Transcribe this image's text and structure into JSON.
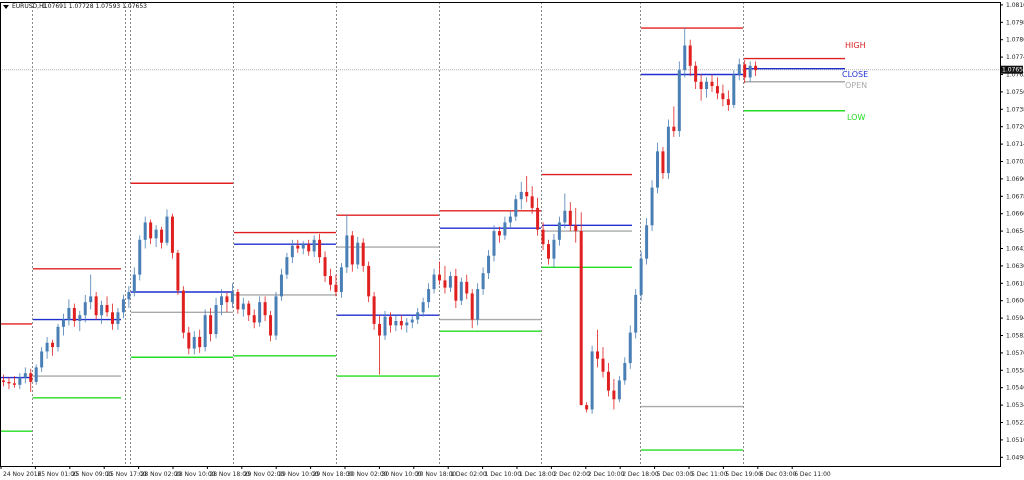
{
  "header": {
    "dropdown_icon": "triangle-down-icon",
    "symbol": "EURUSD,H1",
    "quote": "1.07691 1.07728 1.07593 1.07653"
  },
  "colors": {
    "bull": "#4a7fb5",
    "bear": "#e02020",
    "high": "#e02020",
    "low": "#22dd22",
    "close": "#1f2fd0",
    "open": "#aaaaaa",
    "grid": "#888888",
    "price_tag": "#111111"
  },
  "level_labels": {
    "high": "HIGH",
    "close": "CLOSE",
    "open": "OPEN",
    "low": "LOW"
  },
  "chart_data": {
    "type": "candlestick",
    "title": "EURUSD,H1",
    "ylim": [
      1.0492,
      1.0812
    ],
    "y_ticks": [
      "1.08100",
      "1.07980",
      "1.07860",
      "1.07740",
      "1.07620",
      "1.07500",
      "1.07380",
      "1.07260",
      "1.07140",
      "1.07020",
      "1.06900",
      "1.06780",
      "1.06660",
      "1.06540",
      "1.06420",
      "1.06300",
      "1.06180",
      "1.06060",
      "1.05940",
      "1.05820",
      "1.05700",
      "1.05580",
      "1.05460",
      "1.05340",
      "1.05220",
      "1.05100",
      "1.04980"
    ],
    "current_price": "1.07653",
    "x_ticks": [
      "24 Nov 2016",
      "25 Nov 01:00",
      "25 Nov 09:00",
      "25 Nov 17:00",
      "28 Nov 02:00",
      "28 Nov 10:00",
      "28 Nov 18:00",
      "29 Nov 02:00",
      "29 Nov 10:00",
      "29 Nov 18:00",
      "30 Nov 02:00",
      "30 Nov 10:00",
      "30 Nov 18:00",
      "1 Dec 02:00",
      "1 Dec 10:00",
      "1 Dec 18:00",
      "2 Dec 02:00",
      "2 Dec 10:00",
      "2 Dec 18:00",
      "5 Dec 03:00",
      "5 Dec 11:00",
      "5 Dec 19:00",
      "6 Dec 03:00",
      "6 Dec 11:00"
    ],
    "day_separators": [
      "24 Nov",
      "25 Nov",
      "28 Nov",
      "29 Nov",
      "30 Nov",
      "1 Dec",
      "2 Dec",
      "5 Dec",
      "6 Dec"
    ],
    "daily_levels": [
      {
        "day": "24 Nov",
        "high": 1.059,
        "low": 1.0516,
        "open": null,
        "close": 1.0553
      },
      {
        "day": "25 Nov",
        "high": 1.0628,
        "low": 1.0539,
        "open": 1.0554,
        "close": 1.0593
      },
      {
        "day": "28 Nov",
        "high": 1.0687,
        "low": 1.0567,
        "open": 1.0598,
        "close": 1.0612
      },
      {
        "day": "29 Nov",
        "high": 1.0653,
        "low": 1.0568,
        "open": 1.061,
        "close": 1.0645
      },
      {
        "day": "30 Nov",
        "high": 1.0665,
        "low": 1.0554,
        "open": 1.0643,
        "close": 1.0596
      },
      {
        "day": "1 Dec",
        "high": 1.0668,
        "low": 1.0585,
        "open": 1.0593,
        "close": 1.0656
      },
      {
        "day": "2 Dec",
        "high": 1.0693,
        "low": 1.0629,
        "open": 1.0654,
        "close": 1.0658
      },
      {
        "day": "5 Dec",
        "high": 1.0794,
        "low": 1.0503,
        "open": 1.0533,
        "close": 1.0762
      },
      {
        "day": "6 Dec",
        "high": 1.0773,
        "low": 1.0737,
        "open": 1.0757,
        "close": 1.0766
      }
    ],
    "candles": [
      [
        1.0551,
        1.0555,
        1.0547,
        1.055
      ],
      [
        1.055,
        1.0553,
        1.0545,
        1.0549
      ],
      [
        1.0549,
        1.0554,
        1.0546,
        1.0548
      ],
      [
        1.0548,
        1.0556,
        1.0545,
        1.0553
      ],
      [
        1.0553,
        1.056,
        1.0549,
        1.0556
      ],
      [
        1.0556,
        1.0559,
        1.0543,
        1.055
      ],
      [
        1.055,
        1.0562,
        1.0548,
        1.056
      ],
      [
        1.056,
        1.0574,
        1.0557,
        1.0571
      ],
      [
        1.0571,
        1.0581,
        1.0566,
        1.0577
      ],
      [
        1.0577,
        1.0579,
        1.0568,
        1.0574
      ],
      [
        1.0574,
        1.059,
        1.0571,
        1.0588
      ],
      [
        1.0588,
        1.0597,
        1.0582,
        1.0593
      ],
      [
        1.0593,
        1.0607,
        1.0589,
        1.0601
      ],
      [
        1.0601,
        1.0604,
        1.0588,
        1.0592
      ],
      [
        1.0592,
        1.0599,
        1.0585,
        1.0596
      ],
      [
        1.0596,
        1.061,
        1.0591,
        1.0605
      ],
      [
        1.0605,
        1.0624,
        1.06,
        1.0609
      ],
      [
        1.0609,
        1.0612,
        1.0593,
        1.0596
      ],
      [
        1.0596,
        1.0606,
        1.059,
        1.0603
      ],
      [
        1.0603,
        1.0609,
        1.0595,
        1.0598
      ],
      [
        1.0598,
        1.0604,
        1.0586,
        1.059
      ],
      [
        1.059,
        1.0601,
        1.0586,
        1.0598
      ],
      [
        1.0598,
        1.061,
        1.0594,
        1.0607
      ],
      [
        1.0607,
        1.0616,
        1.0601,
        1.0612
      ],
      [
        1.0612,
        1.0629,
        1.0609,
        1.0624
      ],
      [
        1.0624,
        1.0651,
        1.062,
        1.0648
      ],
      [
        1.0648,
        1.0664,
        1.0642,
        1.066
      ],
      [
        1.066,
        1.0662,
        1.0645,
        1.0649
      ],
      [
        1.0649,
        1.0658,
        1.0643,
        1.0655
      ],
      [
        1.0655,
        1.0657,
        1.0642,
        1.0646
      ],
      [
        1.0646,
        1.0669,
        1.0644,
        1.0664
      ],
      [
        1.0664,
        1.0666,
        1.0635,
        1.0639
      ],
      [
        1.0639,
        1.0641,
        1.061,
        1.0613
      ],
      [
        1.0613,
        1.0616,
        1.058,
        1.0584
      ],
      [
        1.0584,
        1.0588,
        1.0569,
        1.0573
      ],
      [
        1.0573,
        1.0585,
        1.0569,
        1.0581
      ],
      [
        1.0581,
        1.0586,
        1.057,
        1.0574
      ],
      [
        1.0574,
        1.06,
        1.0571,
        1.0596
      ],
      [
        1.0596,
        1.0601,
        1.0578,
        1.0583
      ],
      [
        1.0583,
        1.0608,
        1.058,
        1.0603
      ],
      [
        1.0603,
        1.0614,
        1.0596,
        1.0609
      ],
      [
        1.0609,
        1.0612,
        1.0598,
        1.0605
      ],
      [
        1.0605,
        1.0618,
        1.0601,
        1.0612
      ],
      [
        1.0612,
        1.0614,
        1.0597,
        1.06
      ],
      [
        1.06,
        1.0608,
        1.0595,
        1.0604
      ],
      [
        1.0604,
        1.0606,
        1.0592,
        1.0596
      ],
      [
        1.0596,
        1.06,
        1.0587,
        1.0591
      ],
      [
        1.0591,
        1.0609,
        1.0588,
        1.0605
      ],
      [
        1.0605,
        1.0609,
        1.0592,
        1.0596
      ],
      [
        1.0596,
        1.0599,
        1.0578,
        1.0582
      ],
      [
        1.0582,
        1.0612,
        1.0579,
        1.0609
      ],
      [
        1.0609,
        1.0628,
        1.0606,
        1.0624
      ],
      [
        1.0624,
        1.0639,
        1.0621,
        1.0636
      ],
      [
        1.0636,
        1.0648,
        1.0632,
        1.0644
      ],
      [
        1.0644,
        1.0648,
        1.0639,
        1.0642
      ],
      [
        1.0642,
        1.0647,
        1.0638,
        1.0645
      ],
      [
        1.0645,
        1.0648,
        1.0637,
        1.064
      ],
      [
        1.064,
        1.0651,
        1.0636,
        1.0648
      ],
      [
        1.0648,
        1.0652,
        1.0632,
        1.0636
      ],
      [
        1.0636,
        1.064,
        1.0619,
        1.0623
      ],
      [
        1.0623,
        1.0628,
        1.0613,
        1.0617
      ],
      [
        1.0617,
        1.0624,
        1.0609,
        1.0612
      ],
      [
        1.0612,
        1.0632,
        1.0608,
        1.0629
      ],
      [
        1.0629,
        1.0665,
        1.0625,
        1.0651
      ],
      [
        1.0651,
        1.0654,
        1.0626,
        1.0631
      ],
      [
        1.0631,
        1.065,
        1.0628,
        1.0646
      ],
      [
        1.0646,
        1.0649,
        1.0626,
        1.063
      ],
      [
        1.063,
        1.0633,
        1.0605,
        1.0609
      ],
      [
        1.0609,
        1.0612,
        1.0586,
        1.059
      ],
      [
        1.059,
        1.0596,
        1.0555,
        1.0582
      ],
      [
        1.0582,
        1.0599,
        1.0579,
        1.0595
      ],
      [
        1.0595,
        1.0598,
        1.0584,
        1.0589
      ],
      [
        1.0589,
        1.0596,
        1.0585,
        1.0592
      ],
      [
        1.0592,
        1.0596,
        1.0586,
        1.0589
      ],
      [
        1.0589,
        1.0594,
        1.0584,
        1.0591
      ],
      [
        1.0591,
        1.0596,
        1.0587,
        1.0593
      ],
      [
        1.0593,
        1.0601,
        1.059,
        1.0598
      ],
      [
        1.0598,
        1.0608,
        1.0595,
        1.0605
      ],
      [
        1.0605,
        1.0618,
        1.0601,
        1.0614
      ],
      [
        1.0614,
        1.0628,
        1.0611,
        1.0624
      ],
      [
        1.0624,
        1.0633,
        1.0617,
        1.062
      ],
      [
        1.062,
        1.063,
        1.0611,
        1.0615
      ],
      [
        1.0615,
        1.0626,
        1.0612,
        1.0623
      ],
      [
        1.0623,
        1.0628,
        1.0601,
        1.0606
      ],
      [
        1.0606,
        1.0622,
        1.0603,
        1.0619
      ],
      [
        1.0619,
        1.0624,
        1.0607,
        1.0611
      ],
      [
        1.0611,
        1.0614,
        1.0587,
        1.0593
      ],
      [
        1.0593,
        1.0618,
        1.0589,
        1.0614
      ],
      [
        1.0614,
        1.0629,
        1.061,
        1.0625
      ],
      [
        1.0625,
        1.0641,
        1.0621,
        1.0637
      ],
      [
        1.0637,
        1.0658,
        1.0633,
        1.0654
      ],
      [
        1.0654,
        1.0657,
        1.0646,
        1.0651
      ],
      [
        1.0651,
        1.0664,
        1.0648,
        1.066
      ],
      [
        1.066,
        1.0668,
        1.0656,
        1.0664
      ],
      [
        1.0664,
        1.0679,
        1.0661,
        1.0676
      ],
      [
        1.0676,
        1.0688,
        1.0669,
        1.0681
      ],
      [
        1.0681,
        1.0692,
        1.0674,
        1.0678
      ],
      [
        1.0678,
        1.0685,
        1.0666,
        1.067
      ],
      [
        1.067,
        1.0677,
        1.0651,
        1.0655
      ],
      [
        1.0655,
        1.066,
        1.0641,
        1.0645
      ],
      [
        1.0645,
        1.0648,
        1.0631,
        1.0635
      ],
      [
        1.0635,
        1.0652,
        1.0629,
        1.0648
      ],
      [
        1.0648,
        1.0664,
        1.0644,
        1.066
      ],
      [
        1.066,
        1.068,
        1.0656,
        1.0668
      ],
      [
        1.0668,
        1.0674,
        1.0654,
        1.0658
      ],
      [
        1.0658,
        1.067,
        1.0646,
        1.0654
      ],
      [
        1.0654,
        1.0667,
        1.0534,
        1.0534
      ],
      [
        1.0534,
        1.0536,
        1.0529,
        1.0531
      ],
      [
        1.0531,
        1.0575,
        1.0528,
        1.0571
      ],
      [
        1.0571,
        1.0586,
        1.056,
        1.0566
      ],
      [
        1.0566,
        1.0574,
        1.0553,
        1.0557
      ],
      [
        1.0557,
        1.0563,
        1.054,
        1.0544
      ],
      [
        1.0544,
        1.0552,
        1.0531,
        1.0538
      ],
      [
        1.0538,
        1.0554,
        1.0536,
        1.0551
      ],
      [
        1.0551,
        1.0567,
        1.0548,
        1.0563
      ],
      [
        1.0563,
        1.0589,
        1.0559,
        1.0584
      ],
      [
        1.0584,
        1.0614,
        1.058,
        1.061
      ],
      [
        1.061,
        1.064,
        1.0606,
        1.0635
      ],
      [
        1.0635,
        1.0663,
        1.0631,
        1.0658
      ],
      [
        1.0658,
        1.0689,
        1.0654,
        1.0684
      ],
      [
        1.0684,
        1.0715,
        1.068,
        1.0709
      ],
      [
        1.0709,
        1.0712,
        1.069,
        1.0694
      ],
      [
        1.0694,
        1.0731,
        1.069,
        1.0726
      ],
      [
        1.0726,
        1.074,
        1.0719,
        1.0723
      ],
      [
        1.0723,
        1.0771,
        1.0719,
        1.0765
      ],
      [
        1.0765,
        1.0794,
        1.076,
        1.0782
      ],
      [
        1.0782,
        1.0786,
        1.0761,
        1.0768
      ],
      [
        1.0768,
        1.0771,
        1.0752,
        1.0757
      ],
      [
        1.0757,
        1.0762,
        1.0744,
        1.0752
      ],
      [
        1.0752,
        1.076,
        1.0746,
        1.0757
      ],
      [
        1.0757,
        1.0762,
        1.075,
        1.0754
      ],
      [
        1.0754,
        1.076,
        1.0745,
        1.0749
      ],
      [
        1.0749,
        1.0755,
        1.074,
        1.0745
      ],
      [
        1.0745,
        1.0751,
        1.0737,
        1.0741
      ],
      [
        1.0741,
        1.0765,
        1.0739,
        1.0762
      ],
      [
        1.0762,
        1.0773,
        1.0758,
        1.0769
      ],
      [
        1.0769,
        1.0772,
        1.0756,
        1.076
      ],
      [
        1.076,
        1.0771,
        1.0757,
        1.0768
      ],
      [
        1.0768,
        1.0771,
        1.0761,
        1.0765
      ]
    ]
  }
}
